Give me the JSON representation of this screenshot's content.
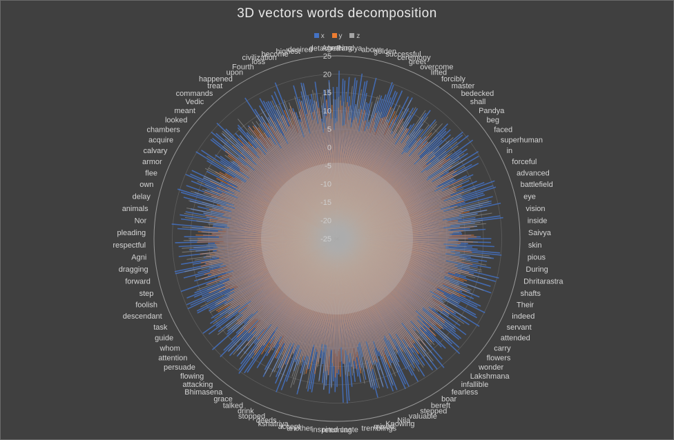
{
  "chart_data": {
    "type": "radar",
    "title": "3D  vectors words decomposition",
    "legend_position": "top",
    "rlim": [
      -25,
      25
    ],
    "r_ticks": [
      "25",
      "20",
      "15",
      "10",
      "5",
      "0",
      "-5",
      "-10",
      "-15",
      "-20",
      "-25"
    ],
    "series": [
      {
        "name": "x",
        "color": "#4472C4"
      },
      {
        "name": "y",
        "color": "#ED7D31"
      },
      {
        "name": "z",
        "color": "#A5A5A5"
      }
    ],
    "category_labels": [
      "Agreeing",
      "Pandya",
      "above",
      "golden",
      "successful",
      "ceremony",
      "greet",
      "overcome",
      "lifted",
      "forcibly",
      "master",
      "bedecked",
      "shall",
      "Pandya",
      "beg",
      "faced",
      "superhuman",
      "in",
      "forceful",
      "advanced",
      "battlefield",
      "eye",
      "vision",
      "inside",
      "Saivya",
      "skin",
      "pious",
      "During",
      "Dhritarastra",
      "shafts",
      "Their",
      "indeed",
      "servant",
      "attended",
      "carry",
      "flowers",
      "wonder",
      "Lakshmana",
      "infallible",
      "fearless",
      "boar",
      "bereft",
      "stepped",
      "valuable",
      "Nila",
      "Knowing",
      "mixed",
      "tremblings",
      "caste",
      "returning",
      "inspired",
      "another",
      "accept",
      "kshatriya",
      "deeds",
      "stopped",
      "drink",
      "talked",
      "grace",
      "Bhimasena",
      "attacking",
      "flowing",
      "persuade",
      "attention",
      "whom",
      "guide",
      "task",
      "descendant",
      "foolish",
      "step",
      "forward",
      "dragging",
      "Agni",
      "respectful",
      "pleading",
      "Nor",
      "animals",
      "delay",
      "own",
      "flee",
      "armor",
      "calvary",
      "acquire",
      "chambers",
      "looked",
      "meant",
      "Vedic",
      "commands",
      "treat",
      "happened",
      "upon",
      "Fourth",
      "loss",
      "civilization",
      "become",
      "highest",
      "desired",
      "detached"
    ]
  }
}
